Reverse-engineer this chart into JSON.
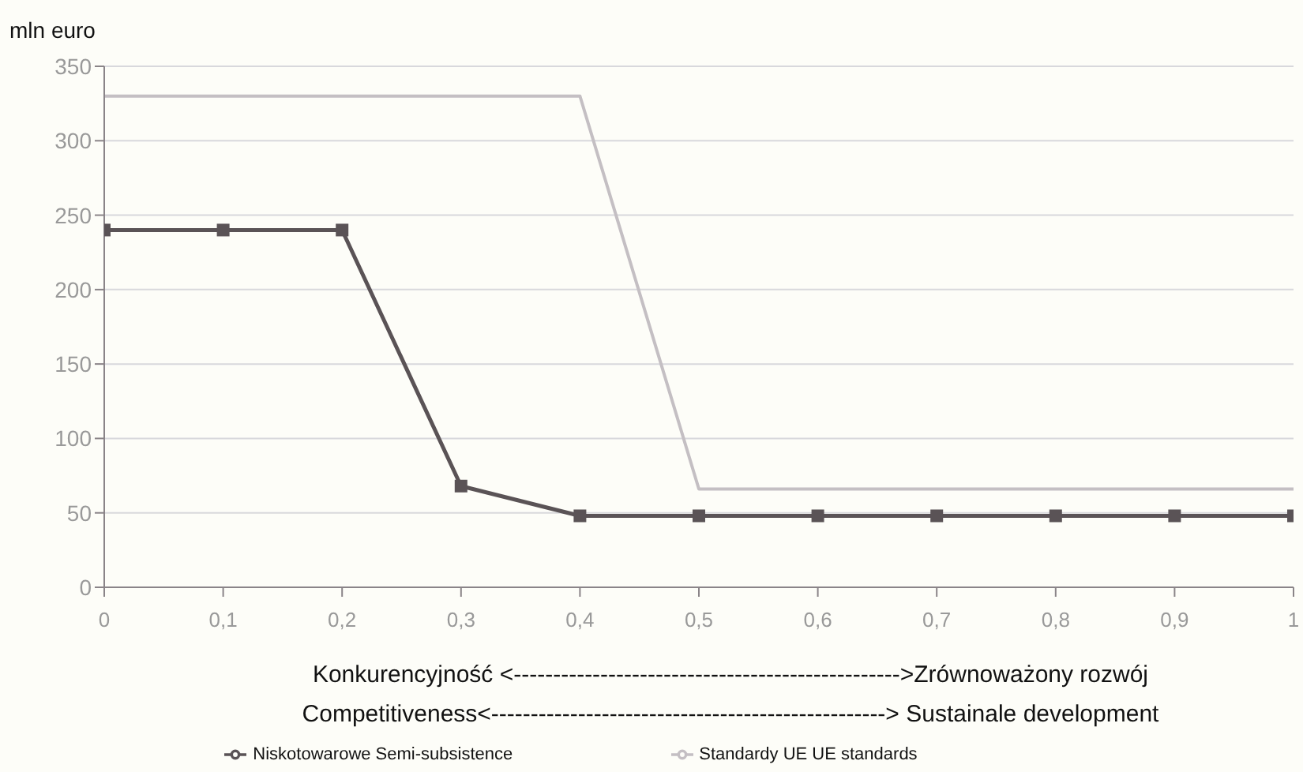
{
  "chart_data": {
    "type": "line",
    "ylabel": "mln euro",
    "xlabel": "Konkurencyjność <------------------------------------------------->Zrównoważony rozwój\nCompetitiveness<--------------------------------------------------> Sustainale development",
    "x": [
      0,
      0.1,
      0.2,
      0.3,
      0.4,
      0.5,
      0.6,
      0.7,
      0.8,
      0.9,
      1
    ],
    "series": [
      {
        "name": "Niskotowarowe   Semi-subsistence",
        "color": "#5a5356",
        "marker": "square",
        "values": [
          240,
          240,
          240,
          68,
          48,
          48,
          48,
          48,
          48,
          48,
          48
        ]
      },
      {
        "name": "Standardy UE   UE standards",
        "color": "#c4bfc3",
        "marker": "none",
        "values": [
          330,
          330,
          330,
          330,
          330,
          66,
          66,
          66,
          66,
          66,
          66
        ]
      }
    ],
    "xlim": [
      0,
      1
    ],
    "xticks": [
      0,
      {
        "value": 0.1,
        "label": "0,1"
      },
      {
        "value": 0.2,
        "label": "0,2"
      },
      {
        "value": 0.3,
        "label": "0,3"
      },
      {
        "value": 0.4,
        "label": "0,4"
      },
      {
        "value": 0.5,
        "label": "0,5"
      },
      {
        "value": 0.6,
        "label": "0,6"
      },
      {
        "value": 0.7,
        "label": "0,7"
      },
      {
        "value": 0.8,
        "label": "0,8"
      },
      {
        "value": 0.9,
        "label": "0,9"
      },
      1
    ],
    "ylim": [
      0,
      350
    ],
    "yticks": [
      0,
      50,
      100,
      150,
      200,
      250,
      300,
      350
    ],
    "grid": "y",
    "legend": "bottom"
  }
}
